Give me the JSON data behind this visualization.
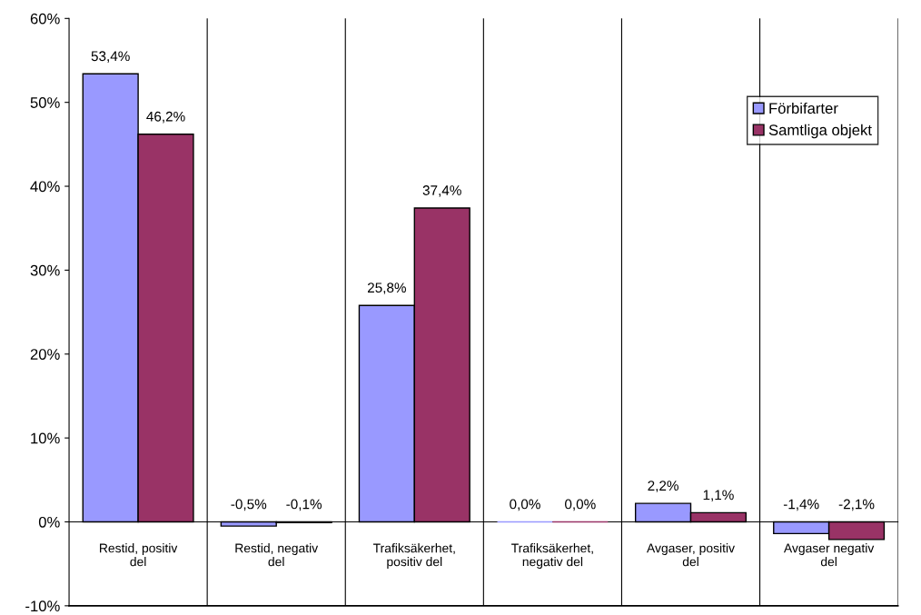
{
  "chart_data": {
    "type": "bar",
    "categories": [
      "Restid, positiv\ndel",
      "Restid, negativ\ndel",
      "Trafiksäkerhet,\npositiv del",
      "Trafiksäkerhet,\nnegativ del",
      "Avgaser, positiv\ndel",
      "Avgaser negativ\ndel"
    ],
    "series": [
      {
        "name": "Förbifarter",
        "color": "#9999ff",
        "values": [
          53.4,
          -0.5,
          25.8,
          0.0,
          2.2,
          -1.4
        ],
        "value_labels": [
          "53,4%",
          "-0,5%",
          "25,8%",
          "0,0%",
          "2,2%",
          "-1,4%"
        ]
      },
      {
        "name": "Samtliga objekt",
        "color": "#993366",
        "values": [
          46.2,
          -0.1,
          37.4,
          0.0,
          1.1,
          -2.1
        ],
        "value_labels": [
          "46,2%",
          "-0,1%",
          "37,4%",
          "0,0%",
          "1,1%",
          "-2,1%"
        ]
      }
    ],
    "ylim": [
      -10,
      60
    ],
    "yticks": [
      {
        "value": -10,
        "label": "-10%"
      },
      {
        "value": 0,
        "label": "0%"
      },
      {
        "value": 10,
        "label": "10%"
      },
      {
        "value": 20,
        "label": "20%"
      },
      {
        "value": 30,
        "label": "30%"
      },
      {
        "value": 40,
        "label": "40%"
      },
      {
        "value": 50,
        "label": "50%"
      },
      {
        "value": 60,
        "label": "60%"
      }
    ],
    "grid": "x",
    "legend": "top right"
  }
}
